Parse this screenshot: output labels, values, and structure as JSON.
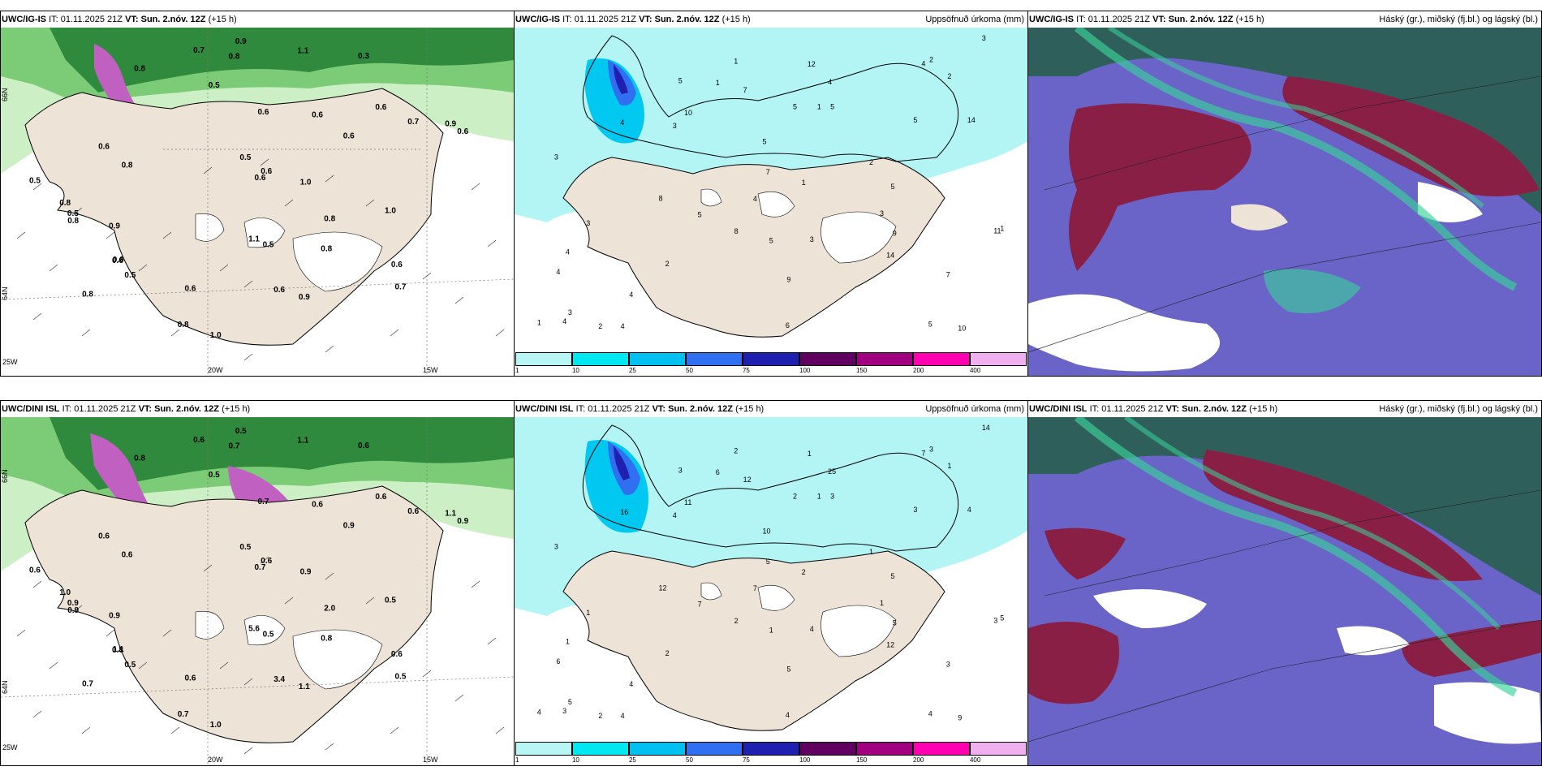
{
  "rows": [
    {
      "model_label": "UWC/IG-IS",
      "it_label": "IT:",
      "it_value": "01.11.2025 21Z",
      "vt_label": "VT:",
      "vt_value": "Sun. 2.nóv. 12Z",
      "lead": "(+15 h)",
      "axes": {
        "lon_left": "25W",
        "lon_mid": "20W",
        "lon_right": "15W",
        "lat_top": "66N",
        "lat_bottom": "64N"
      },
      "wind_values": [
        "0.8",
        "0.3",
        "0.8",
        "0.6",
        "0.5",
        "0.8",
        "0.9",
        "0.6",
        "0.7",
        "0.6",
        "0.8",
        "0.9",
        "0.8",
        "0.6",
        "1.0",
        "0.7",
        "0.7",
        "0.5",
        "0.6",
        "0.8",
        "0.9",
        "0.8",
        "0.5",
        "0.6",
        "0.5",
        "0.6",
        "0.5",
        "1.1",
        "0.6",
        "0.8",
        "0.6",
        "0.5",
        "0.6",
        "1.1",
        "0.6",
        "0.8",
        "0.9",
        "1.0",
        "0.6",
        "1.0",
        "0.6"
      ],
      "precip_values": [
        "5",
        "10",
        "9",
        "6",
        "5",
        "4",
        "5",
        "7",
        "5",
        "8",
        "7",
        "4",
        "4",
        "3",
        "7",
        "14",
        "10",
        "4",
        "11",
        "14",
        "9",
        "5",
        "3",
        "4",
        "4",
        "4",
        "5",
        "3",
        "3",
        "5",
        "5",
        "4",
        "1",
        "2",
        "3",
        "2",
        "3",
        "1",
        "1",
        "1",
        "1",
        "12",
        "8",
        "5",
        "2",
        "1",
        "4",
        "3",
        "2",
        "2"
      ]
    },
    {
      "model_label": "UWC/DINI ISL",
      "it_label": "IT:",
      "it_value": "01.11.2025 21Z",
      "vt_label": "VT:",
      "vt_value": "Sun. 2.nóv. 12Z",
      "lead": "(+15 h)",
      "axes": {
        "lon_left": "25W",
        "lon_mid": "20W",
        "lon_right": "15W",
        "lat_top": "66N",
        "lat_bottom": "64N"
      },
      "wind_values": [
        "0.7",
        "0.6",
        "0.8",
        "0.6",
        "0.5",
        "0.6",
        "0.9",
        "1.1",
        "0.6",
        "0.9",
        "1.0",
        "0.5",
        "0.8",
        "0.7",
        "1.0",
        "0.6",
        "0.5",
        "0.6",
        "0.8",
        "0.7",
        "1.1",
        "0.7",
        "0.5",
        "0.6",
        "0.5",
        "0.6",
        "0.9",
        "1.1",
        "0.7",
        "2.0",
        "0.6",
        "0.5",
        "3.4",
        "5.6",
        "0.6",
        "0.9",
        "1.1",
        "0.9",
        "0.6",
        "0.5",
        "0.9"
      ],
      "precip_values": [
        "10",
        "9",
        "5",
        "4",
        "5",
        "7",
        "7",
        "5",
        "4",
        "12",
        "12",
        "16",
        "25",
        "14",
        "3",
        "12",
        "11",
        "4",
        "3",
        "4",
        "5",
        "3",
        "3",
        "4",
        "6",
        "3",
        "1",
        "4",
        "4",
        "3",
        "2",
        "1",
        "2",
        "2",
        "1",
        "1",
        "1",
        "1",
        "5",
        "6",
        "4",
        "1",
        "2",
        "3",
        "3",
        "2",
        "7",
        "5",
        "2",
        "1"
      ]
    }
  ],
  "precip_title": "Uppsöfnuð úrkoma (mm)",
  "cloud_title": "Háský (gr.), miðský (fj.bl.) og lágský (bl.)",
  "colorbar": {
    "ticks": [
      "1",
      "10",
      "25",
      "50",
      "75",
      "100",
      "150",
      "200",
      "400"
    ],
    "colors": [
      "#b8f6f6",
      "#00e8f0",
      "#00c0f0",
      "#3070f0",
      "#2020b0",
      "#600060",
      "#a00080",
      "#ff00b0",
      "#f0b0f0"
    ]
  },
  "colors": {
    "land": "#ede3d6",
    "precip_bg": "#b3f5f5",
    "cloud_high": "#2f5f5a",
    "cloud_mid": "#8a1f45",
    "cloud_low": "#6a64c8",
    "cloud_edge": "#39d39a",
    "wind_green": "#3fa34d"
  }
}
